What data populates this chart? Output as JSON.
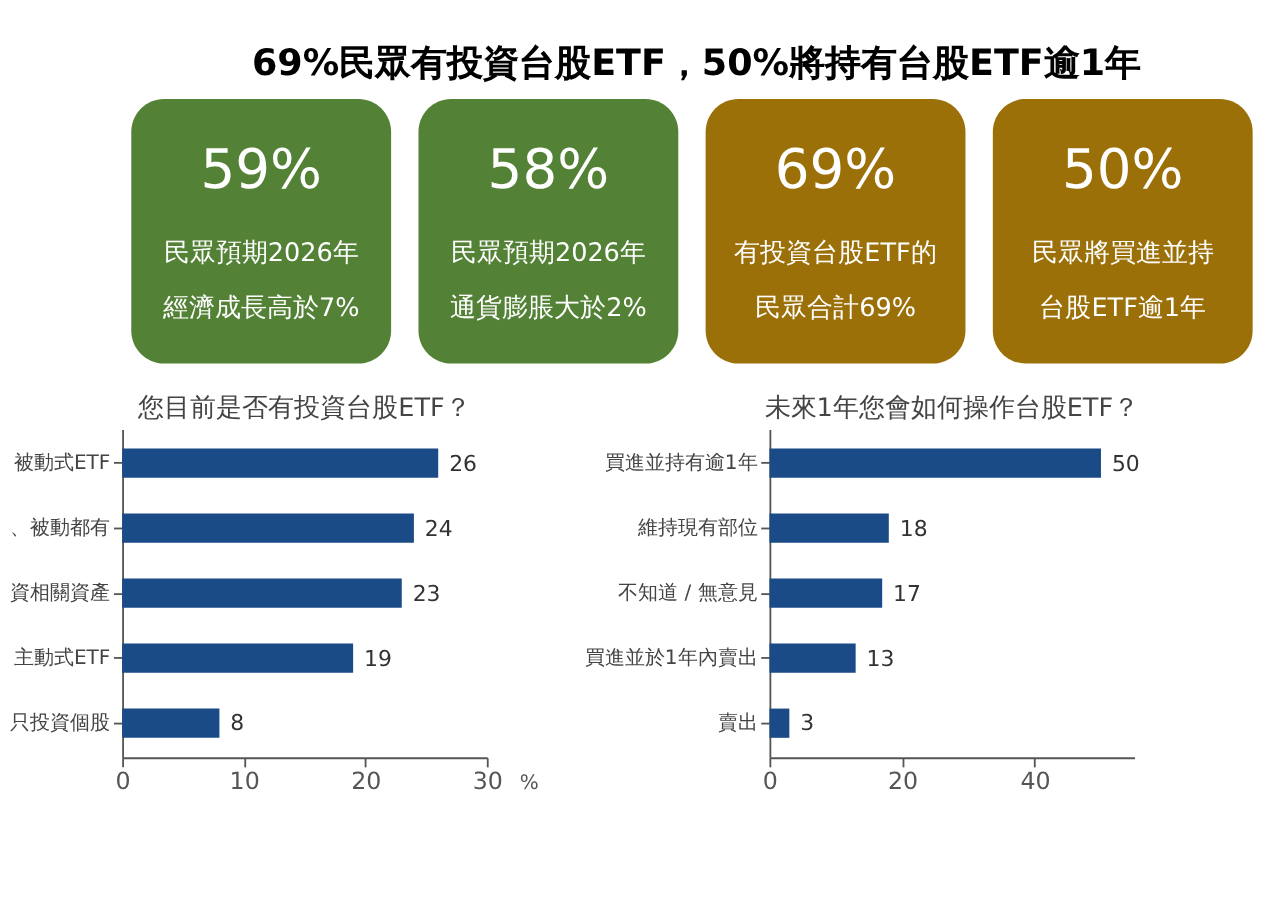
{
  "chart_data": [
    {
      "type": "other",
      "title": "69%民眾有投資台股ETF，50%將持有台股ETF逾1年",
      "colors": [
        "#538135",
        "#538135",
        "#9c7008",
        "#9c7008"
      ],
      "annotations": [
        "59%",
        "民眾預期2026年",
        "經濟成長高於7%",
        "58%",
        "民眾預期2026年",
        "通貨膨脹大於2%",
        "69%",
        "有投資台股ETF的",
        "民眾合計69%",
        "50%",
        "民眾將買進並持",
        "台股ETF逾1年"
      ]
    },
    {
      "type": "bar",
      "orientation": "horizontal",
      "title": "您目前是否有投資台股ETF？",
      "categories": [
        "被動式ETF",
        "、被動都有",
        "資相關資產",
        "主動式ETF",
        "只投資個股"
      ],
      "values": [
        26,
        24,
        23,
        19,
        8
      ],
      "color": "#1a4b87",
      "xlim": [
        0,
        30
      ],
      "xticks": [
        0,
        10,
        20,
        30
      ],
      "xlabel": "%",
      "data_labels": true,
      "grid": false
    },
    {
      "type": "bar",
      "orientation": "horizontal",
      "title": "未來1年您會如何操作台股ETF？",
      "categories": [
        "買進並持有逾1年",
        "維持現有部位",
        "不知道 / 無意見",
        "買進並於1年內賣出",
        "賣出"
      ],
      "values": [
        50,
        18,
        17,
        13,
        3
      ],
      "color": "#1a4b87",
      "xlim": [
        0,
        55
      ],
      "xticks": [
        0,
        20,
        40
      ],
      "data_labels": true,
      "grid": false
    }
  ]
}
